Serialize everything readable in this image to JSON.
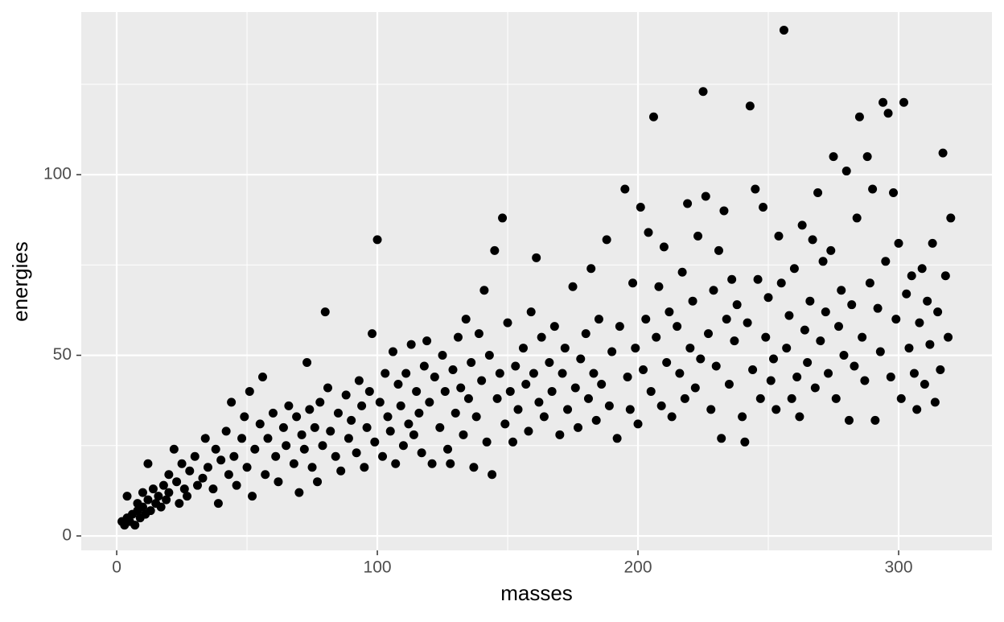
{
  "chart_data": {
    "type": "scatter",
    "x_label": "masses",
    "y_label": "energies",
    "color": "#000000",
    "xlim": [
      -13.6,
      335.8
    ],
    "ylim": [
      -4,
      145
    ],
    "xticks": [
      0,
      100,
      200,
      300
    ],
    "yticks": [
      0,
      50,
      100
    ],
    "xminor": [
      50,
      150,
      250
    ],
    "yminor": [
      25,
      75,
      125
    ],
    "grid": true,
    "x": [
      2,
      3,
      4,
      4,
      5,
      6,
      7,
      8,
      8,
      9,
      10,
      10,
      11,
      12,
      12,
      13,
      14,
      15,
      16,
      17,
      18,
      19,
      20,
      20,
      22,
      23,
      24,
      25,
      26,
      27,
      28,
      30,
      31,
      33,
      34,
      35,
      37,
      38,
      39,
      40,
      42,
      43,
      44,
      45,
      46,
      48,
      49,
      50,
      51,
      52,
      53,
      55,
      56,
      57,
      58,
      60,
      61,
      62,
      64,
      65,
      66,
      68,
      69,
      70,
      71,
      72,
      73,
      74,
      75,
      76,
      77,
      78,
      79,
      80,
      81,
      82,
      84,
      85,
      86,
      88,
      89,
      90,
      92,
      93,
      94,
      95,
      96,
      97,
      98,
      99,
      100,
      101,
      102,
      103,
      104,
      105,
      106,
      107,
      108,
      109,
      110,
      111,
      112,
      113,
      114,
      115,
      116,
      117,
      118,
      119,
      120,
      121,
      122,
      124,
      125,
      126,
      127,
      128,
      129,
      130,
      131,
      132,
      133,
      134,
      135,
      136,
      137,
      138,
      139,
      140,
      141,
      142,
      143,
      144,
      145,
      146,
      147,
      148,
      149,
      150,
      151,
      152,
      153,
      154,
      156,
      157,
      158,
      159,
      160,
      161,
      162,
      163,
      164,
      166,
      167,
      168,
      170,
      171,
      172,
      173,
      175,
      176,
      177,
      178,
      180,
      181,
      182,
      183,
      184,
      185,
      186,
      188,
      189,
      190,
      192,
      193,
      195,
      196,
      197,
      198,
      199,
      200,
      201,
      202,
      203,
      204,
      205,
      206,
      207,
      208,
      209,
      210,
      211,
      212,
      213,
      215,
      216,
      217,
      218,
      219,
      220,
      221,
      222,
      223,
      224,
      225,
      226,
      227,
      228,
      229,
      230,
      231,
      232,
      233,
      234,
      235,
      236,
      237,
      238,
      240,
      241,
      242,
      243,
      244,
      245,
      246,
      247,
      248,
      249,
      250,
      251,
      252,
      253,
      254,
      255,
      256,
      257,
      258,
      259,
      260,
      261,
      262,
      263,
      264,
      265,
      266,
      267,
      268,
      269,
      270,
      271,
      272,
      273,
      274,
      275,
      276,
      277,
      278,
      279,
      280,
      281,
      282,
      283,
      284,
      285,
      286,
      287,
      288,
      289,
      290,
      291,
      292,
      293,
      294,
      295,
      296,
      297,
      298,
      299,
      300,
      301,
      302,
      303,
      304,
      305,
      306,
      307,
      308,
      309,
      310,
      311,
      312,
      313,
      314,
      315,
      316,
      317,
      318,
      319,
      320
    ],
    "y": [
      4,
      3,
      5,
      11,
      4,
      6,
      3,
      7,
      9,
      5,
      8,
      12,
      6,
      10,
      20,
      7,
      13,
      9,
      11,
      8,
      14,
      10,
      17,
      12,
      24,
      15,
      9,
      20,
      13,
      11,
      18,
      22,
      14,
      16,
      27,
      19,
      13,
      24,
      9,
      21,
      29,
      17,
      37,
      22,
      14,
      27,
      33,
      19,
      40,
      11,
      24,
      31,
      44,
      17,
      27,
      34,
      22,
      15,
      30,
      25,
      36,
      20,
      33,
      12,
      28,
      24,
      48,
      35,
      19,
      30,
      15,
      37,
      25,
      62,
      41,
      29,
      22,
      34,
      18,
      39,
      27,
      32,
      23,
      43,
      36,
      19,
      30,
      40,
      56,
      26,
      82,
      37,
      22,
      45,
      33,
      29,
      51,
      20,
      42,
      36,
      25,
      45,
      31,
      53,
      28,
      40,
      34,
      23,
      47,
      54,
      37,
      20,
      44,
      30,
      50,
      40,
      24,
      20,
      46,
      34,
      55,
      41,
      28,
      60,
      38,
      48,
      19,
      33,
      56,
      43,
      68,
      26,
      50,
      17,
      79,
      38,
      45,
      88,
      31,
      59,
      40,
      26,
      47,
      35,
      52,
      42,
      29,
      62,
      45,
      77,
      37,
      55,
      33,
      48,
      40,
      58,
      28,
      45,
      52,
      35,
      69,
      41,
      30,
      49,
      56,
      38,
      74,
      45,
      32,
      60,
      42,
      82,
      36,
      51,
      27,
      58,
      96,
      44,
      35,
      70,
      52,
      31,
      91,
      46,
      60,
      84,
      40,
      116,
      55,
      69,
      36,
      80,
      48,
      62,
      33,
      58,
      45,
      73,
      38,
      92,
      52,
      65,
      41,
      83,
      49,
      123,
      94,
      56,
      35,
      68,
      47,
      79,
      27,
      90,
      60,
      42,
      71,
      54,
      64,
      33,
      26,
      59,
      119,
      46,
      96,
      71,
      38,
      91,
      55,
      66,
      43,
      49,
      35,
      83,
      70,
      140,
      52,
      61,
      38,
      74,
      44,
      33,
      86,
      57,
      48,
      65,
      82,
      41,
      95,
      54,
      76,
      62,
      45,
      79,
      105,
      38,
      58,
      68,
      50,
      101,
      32,
      64,
      47,
      88,
      116,
      55,
      43,
      105,
      70,
      96,
      32,
      63,
      51,
      120,
      76,
      117,
      44,
      95,
      60,
      81,
      38,
      120,
      67,
      52,
      72,
      45,
      35,
      59,
      74,
      42,
      65,
      53,
      81,
      37,
      62,
      46,
      106,
      72,
      55,
      88
    ]
  }
}
